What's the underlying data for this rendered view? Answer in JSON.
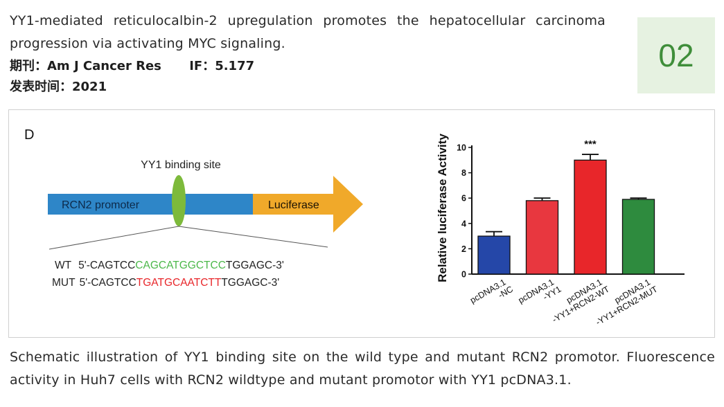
{
  "article": {
    "title": "YY1-mediated reticulocalbin-2 upregulation promotes the hepatocellular carcinoma progression via activating MYC signaling.",
    "journal_label": "期刊：",
    "journal": "Am J Cancer Res",
    "if_label": "IF：",
    "impact_factor": "5.177",
    "date_label": "发表时间：",
    "year": "2021",
    "badge_number": "02",
    "badge_color": "#3f8e3a",
    "badge_bg": "#e6f2e1"
  },
  "figure": {
    "panel_label": "D",
    "schematic": {
      "binding_site_label": "YY1 binding site",
      "promoter_label": "RCN2 promoter",
      "reporter_label": "Luciferase",
      "promoter_color": "#2e86c8",
      "reporter_color": "#f0a92a",
      "site_color": "#7dba3b",
      "wt_label": "WT",
      "wt_prefix": "5'-CAGTCC",
      "wt_site": "CAGCATGGCTCC",
      "wt_suffix": "TGGAGC-3'",
      "wt_site_color": "#4cb84a",
      "mut_label": "MUT",
      "mut_prefix": "5'-CAGTCC",
      "mut_site": "TGATGCAATCTT",
      "mut_suffix": "TGGAGC-3'",
      "mut_site_color": "#e8262a"
    }
  },
  "chart_data": {
    "type": "bar",
    "title": "",
    "ylabel": "Relative luciferase Activity",
    "xlabel": "",
    "ylim": [
      0,
      10
    ],
    "yticks": [
      0,
      2,
      4,
      6,
      8,
      10
    ],
    "categories": [
      [
        "pcDNA3.1",
        "-NC"
      ],
      [
        "pcDNA3.1",
        "-YY1"
      ],
      [
        "pcDNA3.1",
        "-YY1+RCN2-WT"
      ],
      [
        "pcDNA3.1",
        "-YY1+RCN2-MUT"
      ]
    ],
    "values": [
      3.0,
      5.8,
      9.0,
      5.9
    ],
    "errors": [
      0.35,
      0.2,
      0.45,
      0.1
    ],
    "colors": [
      "#2547a8",
      "#e8373f",
      "#e8262a",
      "#2e8b3e"
    ],
    "annotations": [
      {
        "category_index": 2,
        "text": "***"
      }
    ]
  },
  "caption": "Schematic illustration of YY1 binding site on the wild type and mutant RCN2 promotor. Fluorescence activity in Huh7 cells with RCN2 wildtype and mutant promotor with YY1 pcDNA3.1."
}
